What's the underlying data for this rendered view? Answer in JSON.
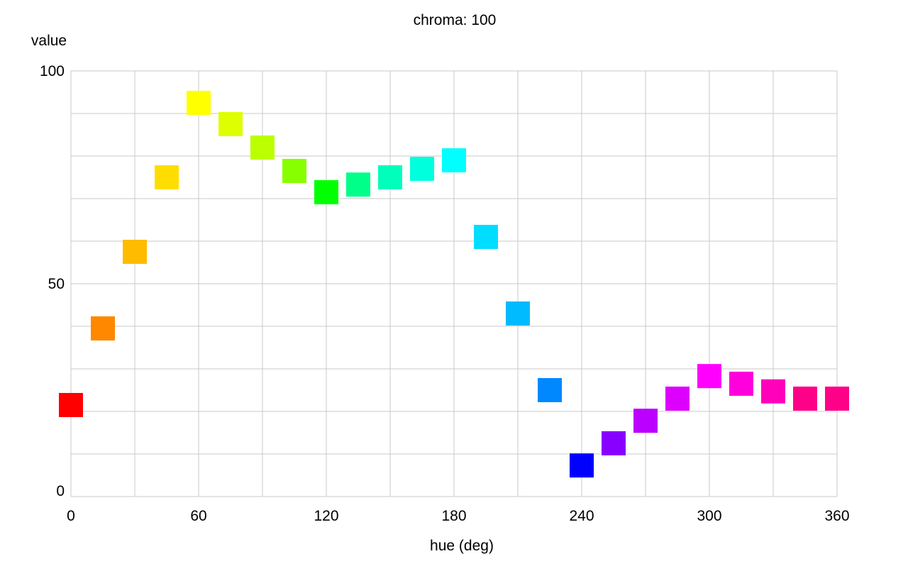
{
  "chart_data": {
    "type": "scatter",
    "title": "chroma: 100",
    "xlabel": "hue (deg)",
    "ylabel": "value",
    "xlim": [
      0,
      360
    ],
    "ylim": [
      0,
      100
    ],
    "x_ticks": [
      0,
      60,
      120,
      180,
      240,
      300,
      360
    ],
    "y_ticks": [
      0,
      50,
      100
    ],
    "x_grid_step": 30,
    "y_grid_step": 10,
    "grid": true,
    "marker": "square",
    "points": [
      {
        "x": 0,
        "y": 21.5,
        "color": "#ff0000"
      },
      {
        "x": 15,
        "y": 39.5,
        "color": "#ff8800"
      },
      {
        "x": 30,
        "y": 57.5,
        "color": "#ffbb00"
      },
      {
        "x": 45,
        "y": 75.0,
        "color": "#ffdd00"
      },
      {
        "x": 60,
        "y": 92.5,
        "color": "#ffff00"
      },
      {
        "x": 75,
        "y": 87.5,
        "color": "#ddff00"
      },
      {
        "x": 90,
        "y": 82.0,
        "color": "#bbff00"
      },
      {
        "x": 105,
        "y": 76.5,
        "color": "#88ff00"
      },
      {
        "x": 120,
        "y": 71.5,
        "color": "#00ff00"
      },
      {
        "x": 135,
        "y": 73.3,
        "color": "#00ff88"
      },
      {
        "x": 150,
        "y": 75.0,
        "color": "#00ffbb"
      },
      {
        "x": 165,
        "y": 77.0,
        "color": "#00ffdd"
      },
      {
        "x": 180,
        "y": 79.0,
        "color": "#00ffff"
      },
      {
        "x": 195,
        "y": 61.0,
        "color": "#00ddff"
      },
      {
        "x": 210,
        "y": 43.0,
        "color": "#00bbff"
      },
      {
        "x": 225,
        "y": 25.0,
        "color": "#0088ff"
      },
      {
        "x": 240,
        "y": 7.3,
        "color": "#0000ff"
      },
      {
        "x": 255,
        "y": 12.5,
        "color": "#8800ff"
      },
      {
        "x": 270,
        "y": 17.8,
        "color": "#bb00ff"
      },
      {
        "x": 285,
        "y": 23.0,
        "color": "#dd00ff"
      },
      {
        "x": 300,
        "y": 28.3,
        "color": "#ff00ff"
      },
      {
        "x": 315,
        "y": 26.5,
        "color": "#ff00dd"
      },
      {
        "x": 330,
        "y": 24.7,
        "color": "#ff00bb"
      },
      {
        "x": 345,
        "y": 23.0,
        "color": "#ff0088"
      },
      {
        "x": 360,
        "y": 23.0,
        "color": "#ff0088"
      }
    ]
  }
}
